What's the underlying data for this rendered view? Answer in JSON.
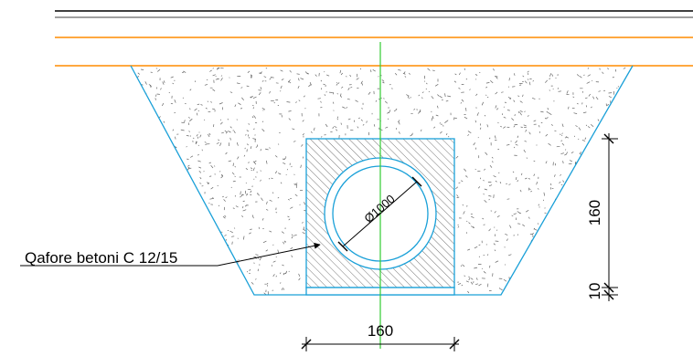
{
  "drawing": {
    "label_concrete": "Qafore betoni C 12/15",
    "pipe_diameter": "Ø1000",
    "dim_height": "160",
    "dim_base": "10",
    "dim_width": "160"
  },
  "colors": {
    "road_top": "#000000",
    "road_second": "#808080",
    "road_layers": "#ff8c00",
    "trench": "#1aa0d8",
    "axis": "#33cc33",
    "hatch": "#555555",
    "fill_specks": "#666666",
    "dimension": "#000000"
  }
}
